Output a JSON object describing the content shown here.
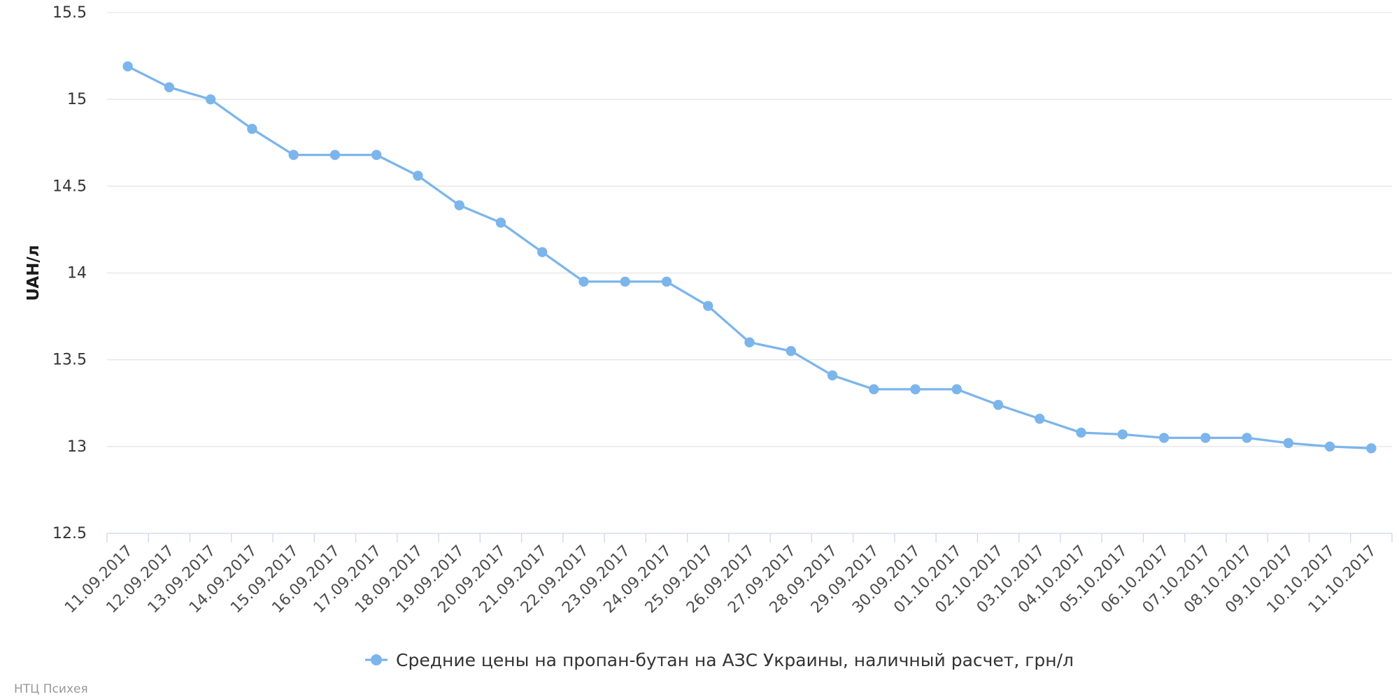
{
  "chart_data": {
    "type": "line",
    "ylabel": "UAH/л",
    "ylim": [
      12.5,
      15.5
    ],
    "yticks": [
      "12.5",
      "13",
      "13.5",
      "14",
      "14.5",
      "15",
      "15.5"
    ],
    "grid": true,
    "legend_position": "bottom-center",
    "categories": [
      "11.09.2017",
      "12.09.2017",
      "13.09.2017",
      "14.09.2017",
      "15.09.2017",
      "16.09.2017",
      "17.09.2017",
      "18.09.2017",
      "19.09.2017",
      "20.09.2017",
      "21.09.2017",
      "22.09.2017",
      "23.09.2017",
      "24.09.2017",
      "25.09.2017",
      "26.09.2017",
      "27.09.2017",
      "28.09.2017",
      "29.09.2017",
      "30.09.2017",
      "01.10.2017",
      "02.10.2017",
      "03.10.2017",
      "04.10.2017",
      "05.10.2017",
      "06.10.2017",
      "07.10.2017",
      "08.10.2017",
      "09.10.2017",
      "10.10.2017",
      "11.10.2017"
    ],
    "series": [
      {
        "name": "Средние цены на пропан-бутан на АЗС Украины, наличный расчет, грн/л",
        "color": "#7cb5ec",
        "values": [
          15.19,
          15.07,
          15.0,
          14.83,
          14.68,
          14.68,
          14.68,
          14.56,
          14.39,
          14.29,
          14.12,
          13.95,
          13.95,
          13.95,
          13.81,
          13.6,
          13.55,
          13.41,
          13.33,
          13.33,
          13.33,
          13.24,
          13.16,
          13.08,
          13.07,
          13.05,
          13.05,
          13.05,
          13.02,
          13.0,
          12.99
        ]
      }
    ]
  },
  "credit": "НТЦ Психея"
}
